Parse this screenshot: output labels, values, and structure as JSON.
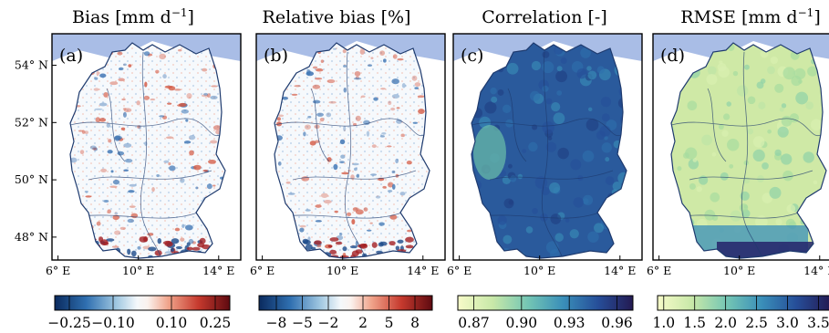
{
  "chart_data": [
    {
      "type": "heatmap",
      "panel_label": "(a)",
      "title": "Bias [mm d",
      "title_sup": "−1",
      "title_end": "]",
      "colormap": "diverging-blue-white-red",
      "colorbar_ticks": [
        "−0.25",
        "−0.10",
        "0.10",
        "0.25"
      ],
      "colorbar_values": [
        -0.25,
        -0.1,
        0.1,
        0.25
      ],
      "colorbar_range": [
        -0.3,
        0.3
      ]
    },
    {
      "type": "heatmap",
      "panel_label": "(b)",
      "title": "Relative bias [%]",
      "colormap": "diverging-blue-white-red",
      "colorbar_ticks": [
        "−8",
        "−5",
        "−2",
        "2",
        "5",
        "8"
      ],
      "colorbar_values": [
        -8,
        -5,
        -2,
        2,
        5,
        8
      ],
      "colorbar_range": [
        -10,
        10
      ]
    },
    {
      "type": "heatmap",
      "panel_label": "(c)",
      "title": "Correlation [-]",
      "colormap": "sequential-yellowgreen-blue",
      "colorbar_ticks": [
        "0.87",
        "0.90",
        "0.93",
        "0.96"
      ],
      "colorbar_values": [
        0.87,
        0.9,
        0.93,
        0.96
      ],
      "colorbar_range": [
        0.86,
        0.97
      ]
    },
    {
      "type": "heatmap",
      "panel_label": "(d)",
      "title": "RMSE [mm d",
      "title_sup": "−1",
      "title_end": "]",
      "colormap": "sequential-yellowgreen-blue",
      "colorbar_ticks": [
        "1.0",
        "1.5",
        "2.0",
        "2.5",
        "3.0",
        "3.5"
      ],
      "colorbar_values": [
        1.0,
        1.5,
        2.0,
        2.5,
        3.0,
        3.5
      ],
      "colorbar_range": [
        0.9,
        3.7
      ]
    }
  ],
  "axes": {
    "x_ticks": [
      "6° E",
      "10° E",
      "14° E"
    ],
    "x_values": [
      6,
      10,
      14
    ],
    "y_ticks": [
      "54° N",
      "52° N",
      "50° N",
      "48° N"
    ],
    "y_values": [
      54,
      52,
      50,
      48
    ],
    "xlim": [
      5.7,
      15.1
    ],
    "ylim": [
      47.2,
      55.1
    ]
  },
  "colors": {
    "sea": "#a9bde6",
    "land_outside": "#ffffff",
    "border": "#1e3a6e"
  }
}
